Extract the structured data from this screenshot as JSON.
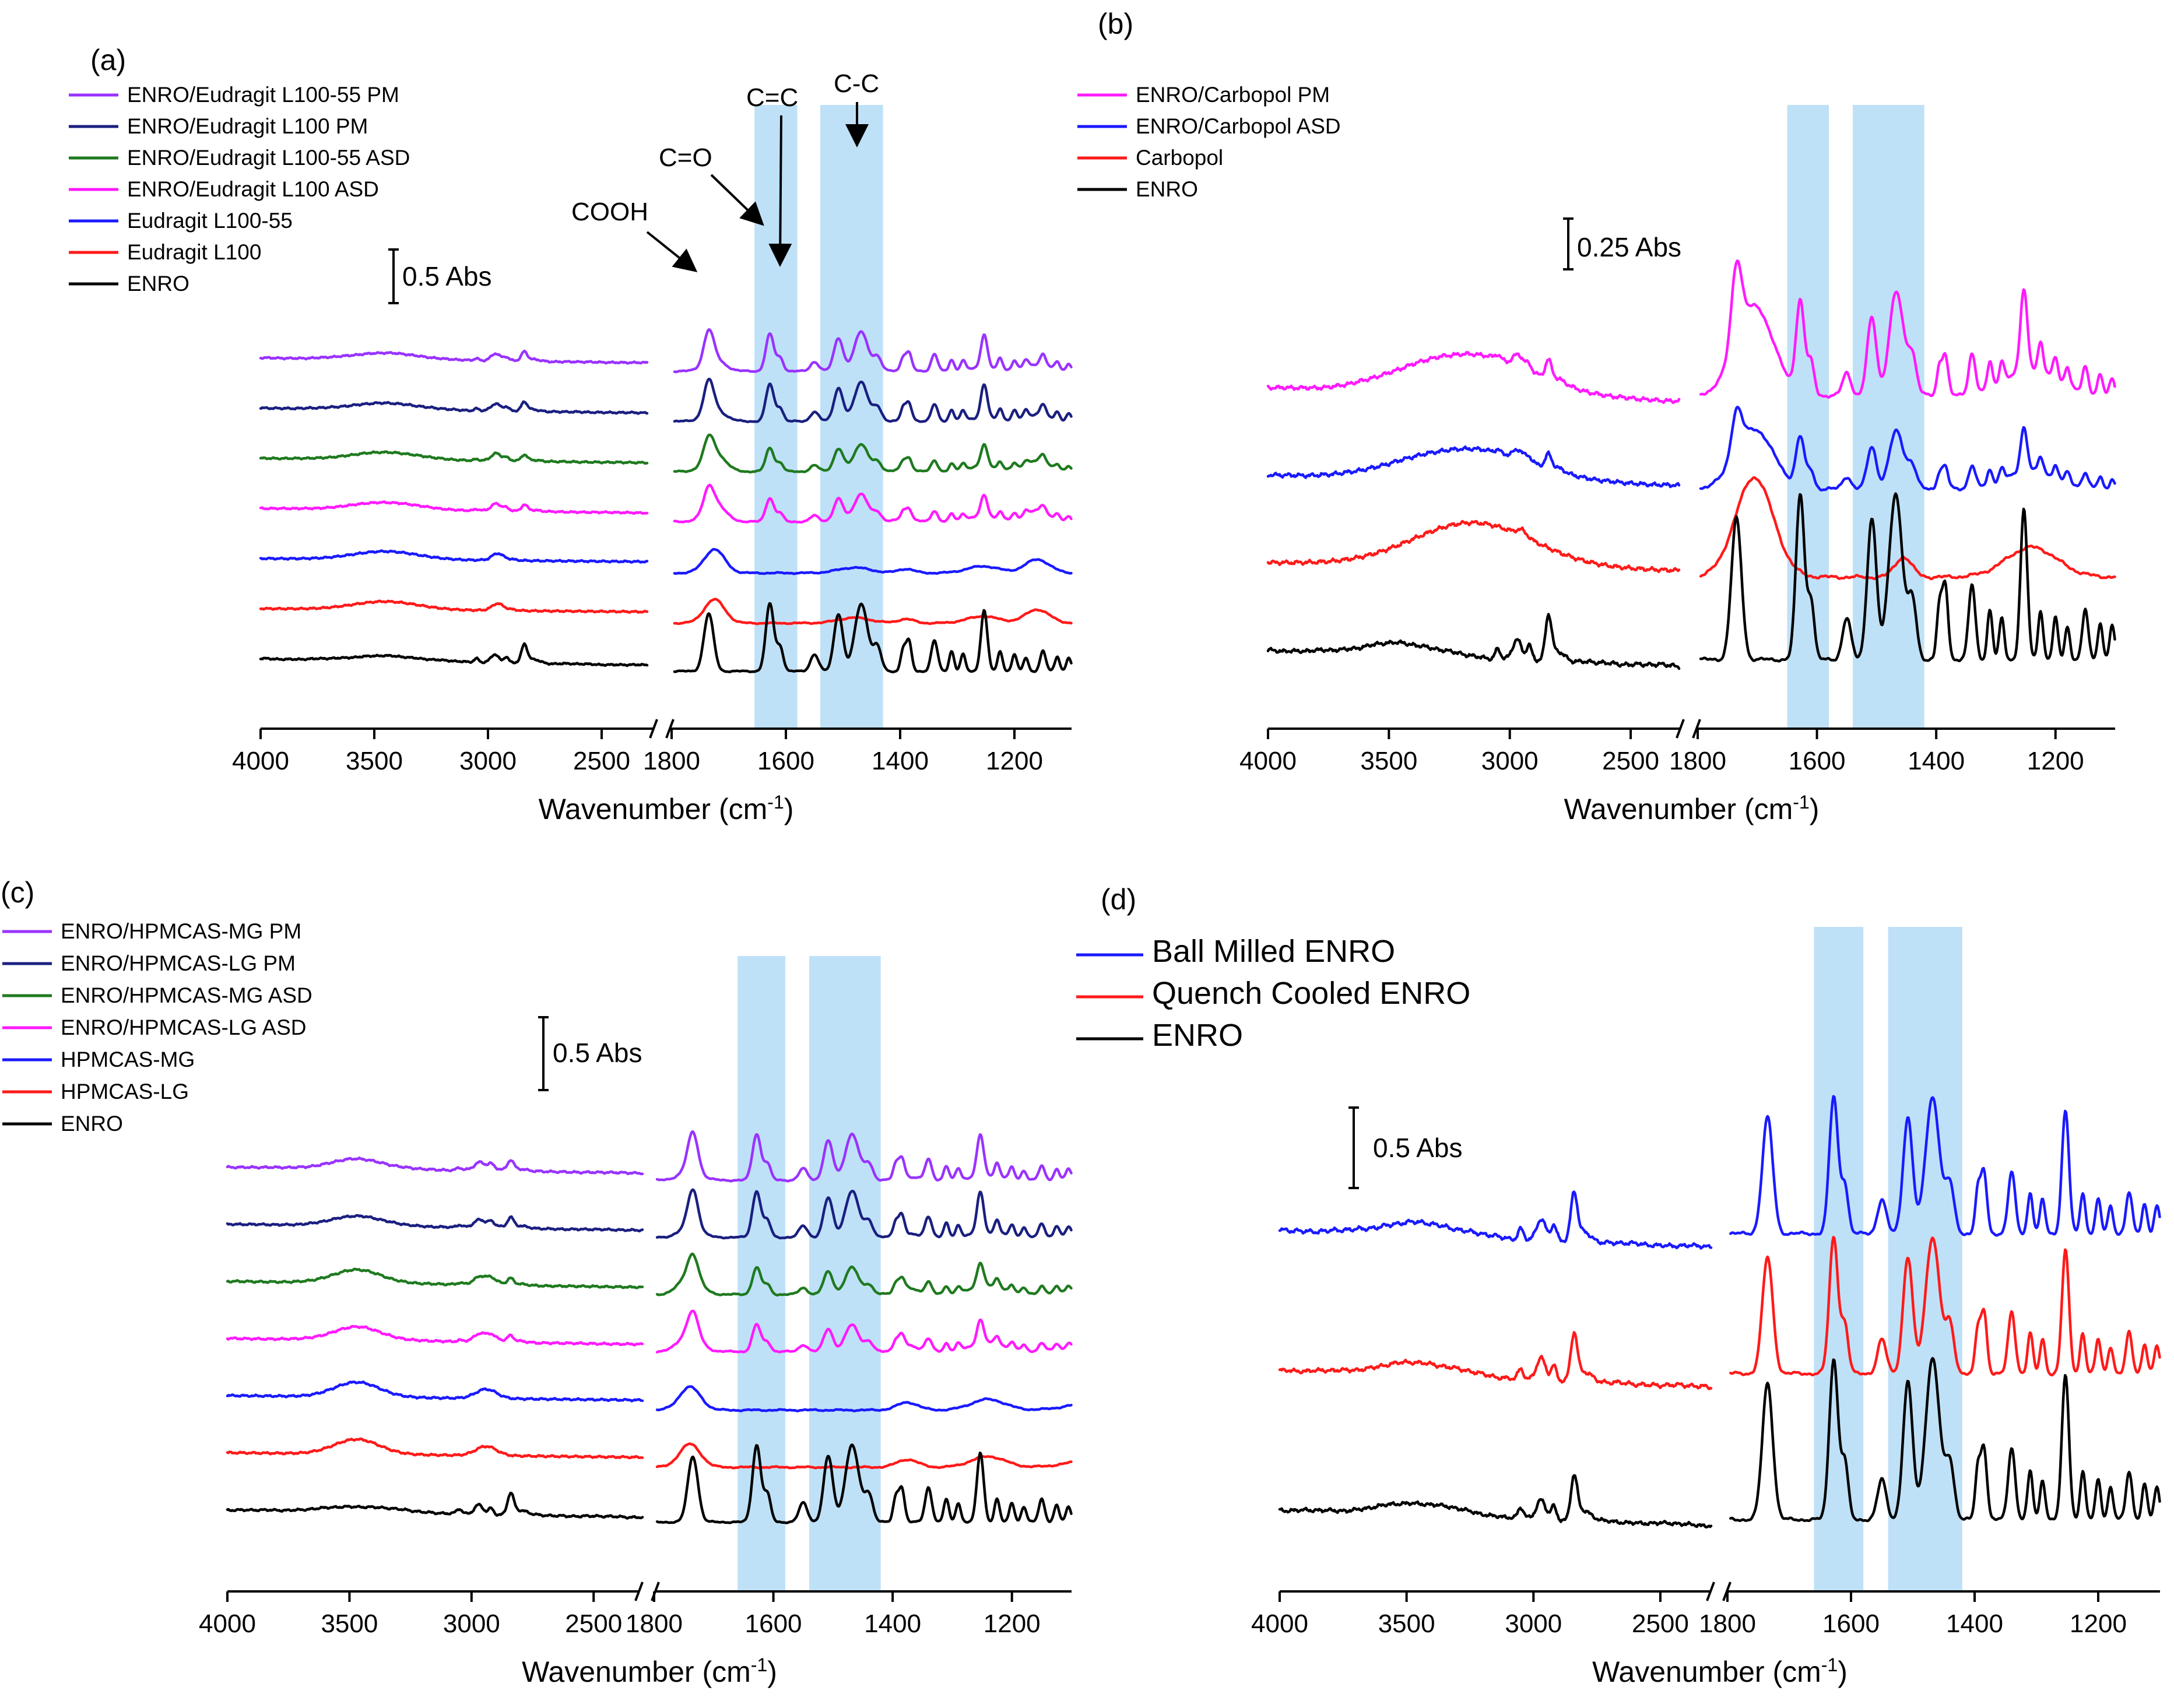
{
  "colors": {
    "purple": "#9933ff",
    "navy": "#1a1f80",
    "green": "#1f7a1f",
    "magenta": "#ff1aff",
    "blue": "#1a1aff",
    "red": "#ff1a1a",
    "black": "#000000",
    "band": "#bfe1f7"
  },
  "chart_data": [
    {
      "panel": "(a)",
      "type": "line",
      "xlabel_main": "Wavenumber (cm",
      "xlabel_sup": "-1",
      "xlabel_tail": ")",
      "x_segments": [
        {
          "range": [
            4000,
            2300
          ],
          "ticks": [
            "4000",
            "3500",
            "3000",
            "2500"
          ],
          "tick_values": [
            4000,
            3500,
            3000,
            2500
          ]
        },
        {
          "range": [
            1800,
            1100
          ],
          "ticks": [
            "1800",
            "1600",
            "1400",
            "1200"
          ],
          "tick_values": [
            1800,
            1600,
            1400,
            1200
          ]
        }
      ],
      "highlight_bands": [
        [
          1655,
          1580
        ],
        [
          1540,
          1430
        ]
      ],
      "scale_bar": "0.5 Abs",
      "annotations": [
        "COOH",
        "C=O",
        "C=C",
        "C-C"
      ],
      "series": [
        {
          "name": "ENRO/Eudragit L100-55 PM",
          "color": "purple",
          "offset": 6
        },
        {
          "name": "ENRO/Eudragit L100 PM",
          "color": "navy",
          "offset": 5
        },
        {
          "name": "ENRO/Eudragit L100-55 ASD",
          "color": "green",
          "offset": 4
        },
        {
          "name": "ENRO/Eudragit L100 ASD",
          "color": "magenta",
          "offset": 3
        },
        {
          "name": "Eudragit L100-55",
          "color": "blue",
          "offset": 2
        },
        {
          "name": "Eudragit L100",
          "color": "red",
          "offset": 1
        },
        {
          "name": "ENRO",
          "color": "black",
          "offset": 0
        }
      ]
    },
    {
      "panel": "(b)",
      "type": "line",
      "xlabel_main": "Wavenumber (cm",
      "xlabel_sup": "-1",
      "xlabel_tail": ")",
      "x_segments": [
        {
          "range": [
            4000,
            2300
          ],
          "ticks": [
            "4000",
            "3500",
            "3000",
            "2500"
          ],
          "tick_values": [
            4000,
            3500,
            3000,
            2500
          ]
        },
        {
          "range": [
            1800,
            1100
          ],
          "ticks": [
            "1800",
            "1600",
            "1400",
            "1200"
          ],
          "tick_values": [
            1800,
            1600,
            1400,
            1200
          ]
        }
      ],
      "highlight_bands": [
        [
          1650,
          1580
        ],
        [
          1540,
          1420
        ]
      ],
      "scale_bar": "0.25 Abs",
      "series": [
        {
          "name": "ENRO/Carbopol PM",
          "color": "magenta",
          "offset": 3
        },
        {
          "name": "ENRO/Carbopol ASD",
          "color": "blue",
          "offset": 2
        },
        {
          "name": "Carbopol",
          "color": "red",
          "offset": 1
        },
        {
          "name": "ENRO",
          "color": "black",
          "offset": 0
        }
      ]
    },
    {
      "panel": "(c)",
      "type": "line",
      "xlabel_main": "Wavenumber (cm",
      "xlabel_sup": "-1",
      "xlabel_tail": ")",
      "x_segments": [
        {
          "range": [
            4000,
            2300
          ],
          "ticks": [
            "4000",
            "3500",
            "3000",
            "2500"
          ],
          "tick_values": [
            4000,
            3500,
            3000,
            2500
          ]
        },
        {
          "range": [
            1800,
            1100
          ],
          "ticks": [
            "1800",
            "1600",
            "1400",
            "1200"
          ],
          "tick_values": [
            1800,
            1600,
            1400,
            1200
          ]
        }
      ],
      "highlight_bands": [
        [
          1660,
          1580
        ],
        [
          1540,
          1420
        ]
      ],
      "scale_bar": "0.5 Abs",
      "series": [
        {
          "name": "ENRO/HPMCAS-MG PM",
          "color": "purple",
          "offset": 6
        },
        {
          "name": "ENRO/HPMCAS-LG PM",
          "color": "navy",
          "offset": 5
        },
        {
          "name": "ENRO/HPMCAS-MG ASD",
          "color": "green",
          "offset": 4
        },
        {
          "name": "ENRO/HPMCAS-LG ASD",
          "color": "magenta",
          "offset": 3
        },
        {
          "name": "HPMCAS-MG",
          "color": "blue",
          "offset": 2
        },
        {
          "name": "HPMCAS-LG",
          "color": "red",
          "offset": 1
        },
        {
          "name": "ENRO",
          "color": "black",
          "offset": 0
        }
      ]
    },
    {
      "panel": "(d)",
      "type": "line",
      "xlabel_main": "Wavenumber (cm",
      "xlabel_sup": "-1",
      "xlabel_tail": ")",
      "x_segments": [
        {
          "range": [
            4000,
            2300
          ],
          "ticks": [
            "4000",
            "3500",
            "3000",
            "2500"
          ],
          "tick_values": [
            4000,
            3500,
            3000,
            2500
          ]
        },
        {
          "range": [
            1800,
            1100
          ],
          "ticks": [
            "1800",
            "1600",
            "1400",
            "1200"
          ],
          "tick_values": [
            1800,
            1600,
            1400,
            1200
          ]
        }
      ],
      "highlight_bands": [
        [
          1660,
          1580
        ],
        [
          1540,
          1420
        ]
      ],
      "scale_bar": "0.5 Abs",
      "series": [
        {
          "name": "Ball Milled ENRO",
          "color": "blue",
          "offset": 2
        },
        {
          "name": "Quench Cooled ENRO",
          "color": "red",
          "offset": 1
        },
        {
          "name": "ENRO",
          "color": "black",
          "offset": 0
        }
      ]
    }
  ]
}
